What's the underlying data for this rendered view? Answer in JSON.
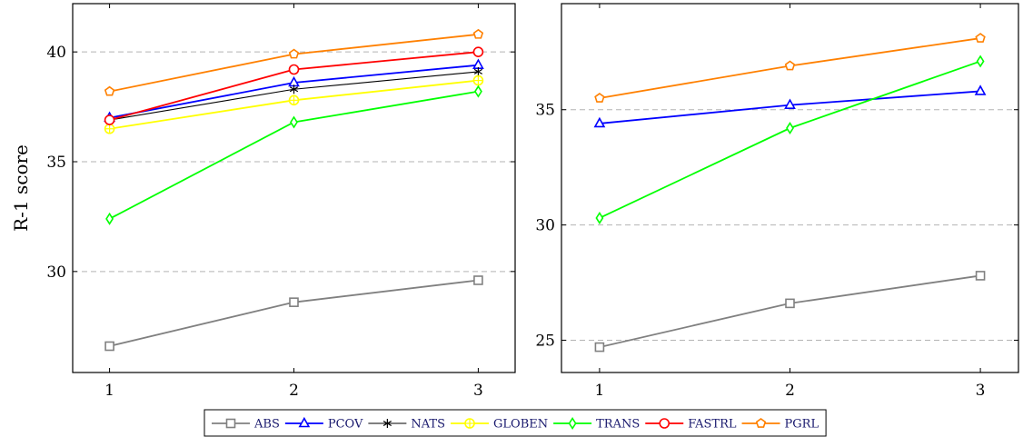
{
  "chart_data": [
    {
      "type": "line",
      "title": "",
      "xlabel": "",
      "ylabel": "R-1 score",
      "x": [
        1,
        2,
        3
      ],
      "xlim": [
        0.8,
        3.2
      ],
      "ylim": [
        25.4,
        42.2
      ],
      "yticks": [
        30,
        35,
        40
      ],
      "grid": "horizontal-dashed",
      "series": [
        {
          "name": "ABS",
          "values": [
            26.6,
            28.6,
            29.6
          ],
          "color": "#808080",
          "marker": "square"
        },
        {
          "name": "PCOV",
          "values": [
            37.0,
            38.6,
            39.4
          ],
          "color": "#0000ff",
          "marker": "triangle"
        },
        {
          "name": "NATS",
          "values": [
            36.9,
            38.3,
            39.1
          ],
          "color": "#000000",
          "marker": "star"
        },
        {
          "name": "GLOBEN",
          "values": [
            36.5,
            37.8,
            38.7
          ],
          "color": "#ffff00",
          "marker": "circle-plus"
        },
        {
          "name": "TRANS",
          "values": [
            32.4,
            36.8,
            38.2
          ],
          "color": "#00ff00",
          "marker": "diamond"
        },
        {
          "name": "FASTRL",
          "values": [
            36.9,
            39.2,
            40.0
          ],
          "color": "#ff0000",
          "marker": "circle"
        },
        {
          "name": "PGRL",
          "values": [
            38.2,
            39.9,
            40.8
          ],
          "color": "#ff8000",
          "marker": "pentagon"
        }
      ]
    },
    {
      "type": "line",
      "title": "",
      "xlabel": "",
      "ylabel": "",
      "x": [
        1,
        2,
        3
      ],
      "xlim": [
        0.8,
        3.2
      ],
      "ylim": [
        23.6,
        39.6
      ],
      "yticks": [
        25,
        30,
        35
      ],
      "grid": "horizontal-dashed",
      "series": [
        {
          "name": "ABS",
          "values": [
            24.7,
            26.6,
            27.8
          ],
          "color": "#808080",
          "marker": "square"
        },
        {
          "name": "PCOV",
          "values": [
            34.4,
            35.2,
            35.8
          ],
          "color": "#0000ff",
          "marker": "triangle"
        },
        {
          "name": "TRANS",
          "values": [
            30.3,
            34.2,
            37.1
          ],
          "color": "#00ff00",
          "marker": "diamond"
        },
        {
          "name": "PGRL",
          "values": [
            35.5,
            36.9,
            38.1
          ],
          "color": "#ff8000",
          "marker": "pentagon"
        }
      ]
    }
  ],
  "legend": {
    "placement": "bottom-center",
    "items": [
      {
        "name": "ABS",
        "color": "#808080",
        "marker": "square"
      },
      {
        "name": "PCOV",
        "color": "#0000ff",
        "marker": "triangle"
      },
      {
        "name": "NATS",
        "color": "#000000",
        "marker": "star"
      },
      {
        "name": "GLOBEN",
        "color": "#ffff00",
        "marker": "circle-plus"
      },
      {
        "name": "TRANS",
        "color": "#00ff00",
        "marker": "diamond"
      },
      {
        "name": "FASTRL",
        "color": "#ff0000",
        "marker": "circle"
      },
      {
        "name": "PGRL",
        "color": "#ff8000",
        "marker": "pentagon"
      }
    ]
  }
}
